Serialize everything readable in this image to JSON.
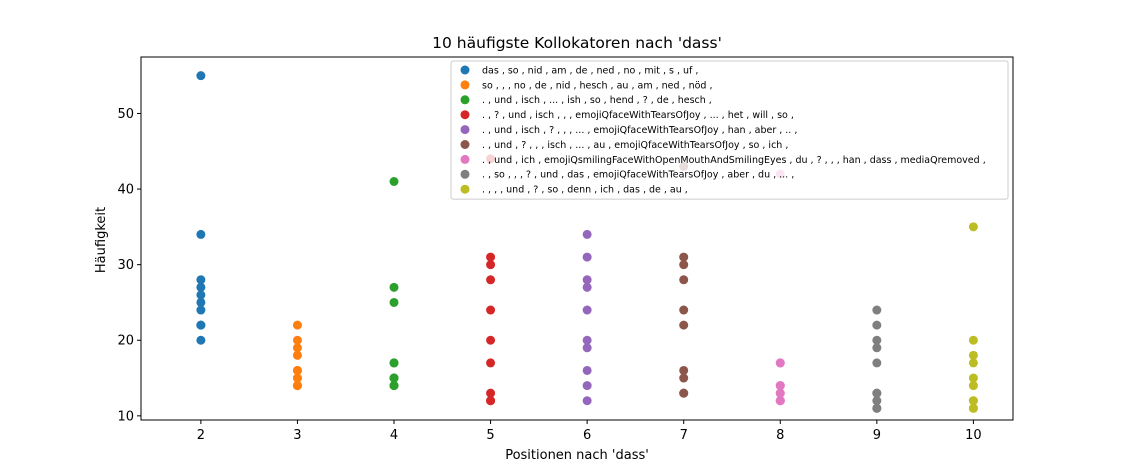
{
  "chart_data": {
    "type": "scatter",
    "title": "10 häufigste Kollokatoren nach 'dass'",
    "xlabel": "Positionen nach 'dass'",
    "ylabel": "Häufigkeit",
    "xlim": [
      1.38,
      10.41
    ],
    "ylim": [
      9.45,
      57.47
    ],
    "xticks": [
      2,
      3,
      4,
      5,
      6,
      7,
      8,
      9,
      10
    ],
    "yticks": [
      10,
      20,
      30,
      40,
      50
    ],
    "legend_position": "top-right",
    "grid": false,
    "series": [
      {
        "name": "das , so , nid , am , de , ned , no , mit , s , uf ,",
        "color": "#1f77b4",
        "x": 2,
        "values": [
          55,
          34,
          28,
          27,
          26,
          25,
          24,
          22,
          22,
          20
        ]
      },
      {
        "name": "so , , , no , de , nid , hesch , au , am , ned , nöd ,",
        "color": "#ff7f0e",
        "x": 3,
        "values": [
          22,
          20,
          19,
          18,
          16,
          16,
          15,
          15,
          14,
          14
        ]
      },
      {
        "name": ". , und , isch , ... , ish , so , hend , ? , de , hesch ,",
        "color": "#2ca02c",
        "x": 4,
        "values": [
          41,
          27,
          25,
          17,
          17,
          15,
          15,
          15,
          14,
          14
        ]
      },
      {
        "name": ". , ? , und , isch , , , emojiQfaceWithTearsOfJoy , ... , het , will , so ,",
        "color": "#d62728",
        "x": 5,
        "values": [
          44,
          31,
          30,
          28,
          24,
          20,
          17,
          13,
          12,
          12
        ]
      },
      {
        "name": ". , und , isch , ? , , , ... , emojiQfaceWithTearsOfJoy , han , aber , .. ,",
        "color": "#9467bd",
        "x": 6,
        "values": [
          34,
          31,
          28,
          27,
          24,
          20,
          19,
          16,
          14,
          12
        ]
      },
      {
        "name": ". , und , ? , , , isch , ... , au , emojiQfaceWithTearsOfJoy , so , ich ,",
        "color": "#8c564b",
        "x": 7,
        "values": [
          43,
          31,
          30,
          28,
          24,
          22,
          16,
          15,
          13,
          13
        ]
      },
      {
        "name": ". , und , ich , emojiQsmilingFaceWithOpenMouthAndSmilingEyes , du , ? , , , han , dass , mediaQremoved ,",
        "color": "#e377c2",
        "x": 8,
        "values": [
          42,
          17,
          17,
          14,
          14,
          13,
          13,
          12,
          12,
          12
        ]
      },
      {
        "name": ". , so , , , ? , und , das , emojiQfaceWithTearsOfJoy , aber , du , ... ,",
        "color": "#7f7f7f",
        "x": 9,
        "values": [
          24,
          22,
          20,
          19,
          17,
          13,
          13,
          12,
          11,
          11
        ]
      },
      {
        "name": ". , , , und , ? , so , denn , ich , das , de , au ,",
        "color": "#bcbd22",
        "x": 10,
        "values": [
          35,
          20,
          18,
          17,
          15,
          14,
          12,
          12,
          11,
          11
        ]
      }
    ]
  }
}
